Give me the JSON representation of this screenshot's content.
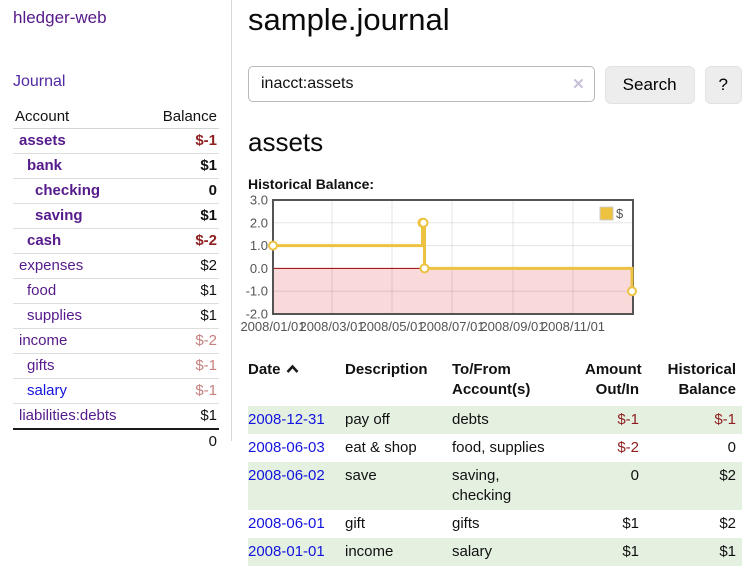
{
  "app": {
    "brand": "hledger-web",
    "nav_journal": "Journal"
  },
  "sidebar": {
    "header": {
      "account": "Account",
      "balance": "Balance"
    },
    "accounts": [
      {
        "name": "assets",
        "level": 1,
        "bold": true,
        "link": "purple",
        "balance": "$-1",
        "balance_class": "neg"
      },
      {
        "name": "bank",
        "level": 2,
        "bold": true,
        "link": "purple",
        "balance": "$1",
        "balance_class": ""
      },
      {
        "name": "checking",
        "level": 3,
        "bold": true,
        "link": "purple",
        "balance": "0",
        "balance_class": ""
      },
      {
        "name": "saving",
        "level": 3,
        "bold": true,
        "link": "purple",
        "balance": "$1",
        "balance_class": ""
      },
      {
        "name": "cash",
        "level": 2,
        "bold": true,
        "link": "purple",
        "balance": "$-2",
        "balance_class": "neg"
      },
      {
        "name": "expenses",
        "level": 1,
        "bold": false,
        "link": "purple",
        "balance": "$2",
        "balance_class": ""
      },
      {
        "name": "food",
        "level": 2,
        "bold": false,
        "link": "purple",
        "balance": "$1",
        "balance_class": ""
      },
      {
        "name": "supplies",
        "level": 2,
        "bold": false,
        "link": "purple",
        "balance": "$1",
        "balance_class": ""
      },
      {
        "name": "income",
        "level": 1,
        "bold": false,
        "link": "purple",
        "balance": "$-2",
        "balance_class": "faded"
      },
      {
        "name": "gifts",
        "level": 2,
        "bold": false,
        "link": "purple",
        "balance": "$-1",
        "balance_class": "faded"
      },
      {
        "name": "salary",
        "level": 2,
        "bold": false,
        "link": "blue",
        "balance": "$-1",
        "balance_class": "faded"
      },
      {
        "name": "liabilities:debts",
        "level": 1,
        "bold": false,
        "link": "purple",
        "balance": "$1",
        "balance_class": ""
      }
    ],
    "total": "0"
  },
  "header": {
    "title": "sample.journal"
  },
  "search": {
    "value": "inacct:assets",
    "clear_label": "✕",
    "button_label": "Search",
    "help_label": "?"
  },
  "account_page": {
    "title": "assets",
    "chart_label": "Historical Balance:"
  },
  "chart_data": {
    "type": "line",
    "title": "Historical Balance",
    "series": [
      {
        "name": "$",
        "color": "#edc240",
        "step": true,
        "points": [
          [
            "2008-01-01",
            1
          ],
          [
            "2008-06-01",
            2
          ],
          [
            "2008-06-02",
            2
          ],
          [
            "2008-06-03",
            0
          ],
          [
            "2008-12-31",
            -1
          ]
        ]
      }
    ],
    "x_domain": [
      "2008-01-01",
      "2009-01-01"
    ],
    "ylim": [
      -2,
      3
    ],
    "ytick_labels": [
      "3.0",
      "2.0",
      "1.0",
      "0.0",
      "-1.0",
      "-2.0"
    ],
    "yticks": [
      3,
      2,
      1,
      0,
      -1,
      -2
    ],
    "xticks": [
      {
        "date": "2008-01-01",
        "label": "2008/01/01"
      },
      {
        "date": "2008-03-01",
        "label": "2008/03/01"
      },
      {
        "date": "2008-05-01",
        "label": "2008/05/01"
      },
      {
        "date": "2008-07-01",
        "label": "2008/07/01"
      },
      {
        "date": "2008-09-01",
        "label": "2008/09/01"
      },
      {
        "date": "2008-11-01",
        "label": "2008/11/01"
      }
    ],
    "grid": true,
    "legend_position": "top-right",
    "border_color": "#545454",
    "negative_region_color": "#f9d9d9",
    "zero_line_color": "#990000",
    "axis_text_color": "#545454"
  },
  "register": {
    "columns": {
      "date": "Date",
      "description": "Description",
      "accounts": "To/From\nAccount(s)",
      "amount": "Amount\nOut/In",
      "balance": "Historical\nBalance"
    },
    "rows": [
      {
        "date": "2008-12-31",
        "description": "pay off",
        "accounts": "debts",
        "amount": "$-1",
        "amount_class": "neg",
        "balance": "$-1",
        "balance_class": "neg",
        "shade": true
      },
      {
        "date": "2008-06-03",
        "description": "eat & shop",
        "accounts": "food, supplies",
        "amount": "$-2",
        "amount_class": "neg",
        "balance": "0",
        "balance_class": "",
        "shade": false
      },
      {
        "date": "2008-06-02",
        "description": "save",
        "accounts": "saving,\nchecking",
        "amount": "0",
        "amount_class": "",
        "balance": "$2",
        "balance_class": "",
        "shade": true
      },
      {
        "date": "2008-06-01",
        "description": "gift",
        "accounts": "gifts",
        "amount": "$1",
        "amount_class": "",
        "balance": "$2",
        "balance_class": "",
        "shade": false
      },
      {
        "date": "2008-01-01",
        "description": "income",
        "accounts": "salary",
        "amount": "$1",
        "amount_class": "",
        "balance": "$1",
        "balance_class": "",
        "shade": true
      }
    ]
  }
}
